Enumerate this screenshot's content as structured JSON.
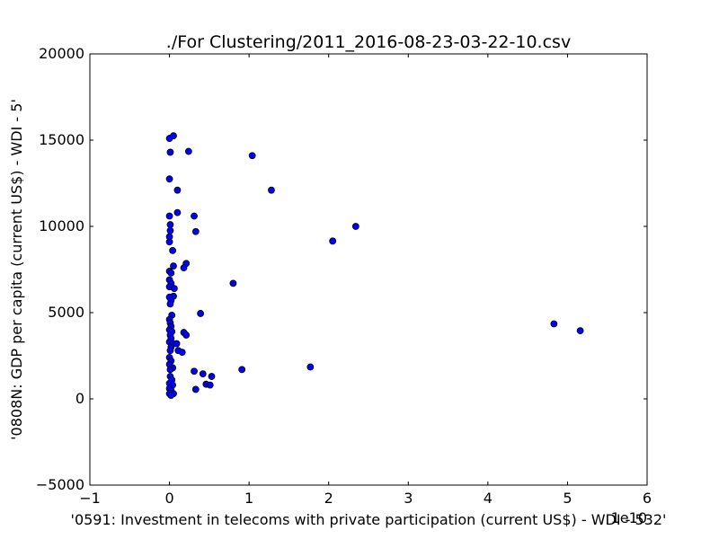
{
  "chart_data": {
    "type": "scatter",
    "title": "./For Clustering/2011_2016-08-23-03-22-10.csv",
    "xlabel": "'0591: Investment in telecoms with private participation  (current US$) - WDI - 532'",
    "ylabel": "'0808N: GDP per capita  (current US$) - WDI - 5'",
    "x_offset_label": "1e10",
    "xlim": [
      -1,
      6
    ],
    "ylim": [
      -5000,
      20000
    ],
    "xticks": [
      -1,
      0,
      1,
      2,
      3,
      4,
      5,
      6
    ],
    "yticks": [
      -5000,
      0,
      5000,
      10000,
      15000,
      20000
    ],
    "xtick_labels": [
      "−1",
      "0",
      "1",
      "2",
      "3",
      "4",
      "5",
      "6"
    ],
    "ytick_labels": [
      "−5000",
      "0",
      "5000",
      "10000",
      "15000",
      "20000"
    ],
    "grid": false,
    "marker_color": "#0000ff",
    "series": [
      {
        "points": [
          [
            0.0,
            15100
          ],
          [
            0.05,
            15250
          ],
          [
            0.01,
            14300
          ],
          [
            0.24,
            14350
          ],
          [
            0.0,
            12750
          ],
          [
            0.1,
            12100
          ],
          [
            0.1,
            10800
          ],
          [
            0.0,
            10600
          ],
          [
            0.31,
            10600
          ],
          [
            0.01,
            10100
          ],
          [
            0.01,
            9750
          ],
          [
            0.33,
            9700
          ],
          [
            0.0,
            9400
          ],
          [
            0.0,
            9100
          ],
          [
            0.04,
            8600
          ],
          [
            0.21,
            7850
          ],
          [
            0.05,
            7700
          ],
          [
            0.18,
            7600
          ],
          [
            0.0,
            7400
          ],
          [
            0.02,
            7300
          ],
          [
            0.0,
            6900
          ],
          [
            0.02,
            6700
          ],
          [
            0.8,
            6700
          ],
          [
            0.0,
            6500
          ],
          [
            0.06,
            6400
          ],
          [
            0.0,
            5900
          ],
          [
            0.05,
            5950
          ],
          [
            0.02,
            5700
          ],
          [
            0.01,
            5500
          ],
          [
            0.39,
            4950
          ],
          [
            0.03,
            4850
          ],
          [
            0.0,
            4600
          ],
          [
            0.01,
            4400
          ],
          [
            0.02,
            4200
          ],
          [
            0.0,
            4000
          ],
          [
            0.03,
            3900
          ],
          [
            0.01,
            3700
          ],
          [
            0.18,
            3850
          ],
          [
            0.21,
            3700
          ],
          [
            0.02,
            3500
          ],
          [
            0.0,
            3300
          ],
          [
            0.04,
            3200
          ],
          [
            0.09,
            3200
          ],
          [
            0.02,
            3000
          ],
          [
            0.01,
            2800
          ],
          [
            0.11,
            2800
          ],
          [
            0.16,
            2700
          ],
          [
            0.0,
            2400
          ],
          [
            0.02,
            2200
          ],
          [
            0.0,
            2000
          ],
          [
            0.04,
            1800
          ],
          [
            0.01,
            1700
          ],
          [
            0.31,
            1600
          ],
          [
            0.91,
            1700
          ],
          [
            1.77,
            1850
          ],
          [
            0.42,
            1450
          ],
          [
            0.53,
            1300
          ],
          [
            0.01,
            1300
          ],
          [
            0.03,
            1100
          ],
          [
            0.0,
            900
          ],
          [
            0.04,
            800
          ],
          [
            0.46,
            850
          ],
          [
            0.51,
            800
          ],
          [
            0.0,
            600
          ],
          [
            0.02,
            500
          ],
          [
            0.33,
            550
          ],
          [
            0.0,
            300
          ],
          [
            0.05,
            300
          ],
          [
            0.02,
            200
          ],
          [
            1.04,
            14100
          ],
          [
            1.28,
            12100
          ],
          [
            2.34,
            10000
          ],
          [
            2.05,
            9150
          ],
          [
            4.83,
            4350
          ],
          [
            5.16,
            3950
          ]
        ]
      }
    ]
  }
}
